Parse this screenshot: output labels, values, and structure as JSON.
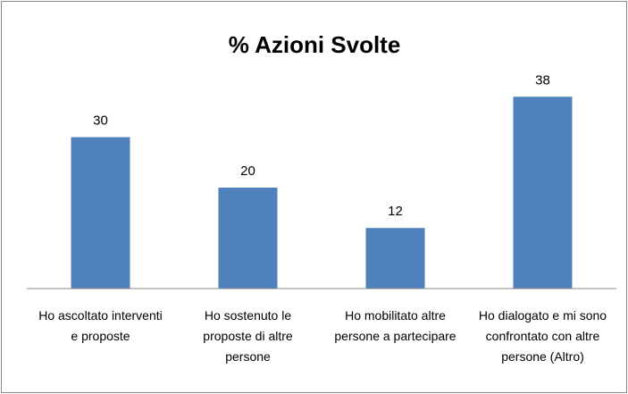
{
  "chart_data": {
    "type": "bar",
    "title": "% Azioni Svolte",
    "categories": [
      "Ho ascoltato interventi e proposte",
      "Ho sostenuto le proposte di altre persone",
      "Ho mobilitato altre persone a partecipare",
      "Ho dialogato e mi sono confrontato con altre persone (Altro)"
    ],
    "values": [
      30,
      20,
      12,
      38
    ],
    "color": "#4f81bd",
    "ylim": [
      0,
      40
    ]
  }
}
